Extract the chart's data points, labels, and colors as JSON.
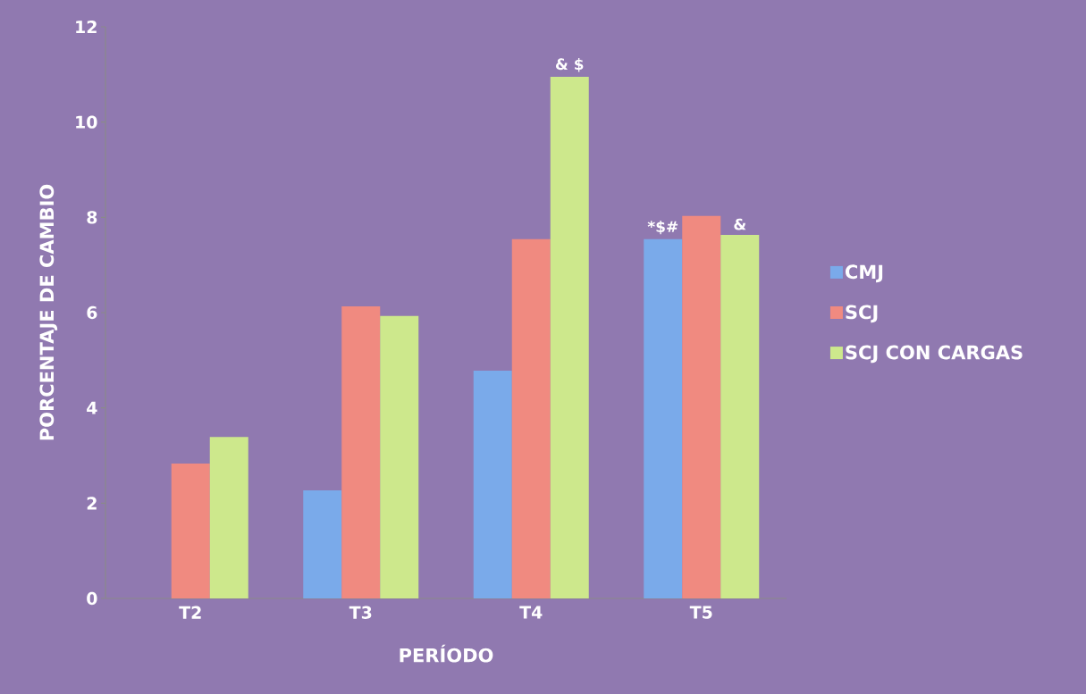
{
  "chart_data": {
    "type": "bar",
    "xlabel": "PERÍODO",
    "ylabel": "PORCENTAJE DE CAMBIO",
    "categories": [
      "T2",
      "T3",
      "T4",
      "T5"
    ],
    "series": [
      {
        "name": "CMJ",
        "color": "#7aaaea",
        "values": [
          null,
          2.27,
          4.78,
          7.54
        ]
      },
      {
        "name": "SCJ",
        "color": "#f08a80",
        "values": [
          2.83,
          6.13,
          7.54,
          8.03
        ]
      },
      {
        "name": "SCJ CON CARGAS",
        "color": "#cde88c",
        "values": [
          3.39,
          5.93,
          10.95,
          7.63
        ]
      }
    ],
    "ylim": [
      0,
      12
    ],
    "yticks": [
      0,
      2,
      4,
      6,
      8,
      10,
      12
    ],
    "legend": "right",
    "grid": false,
    "annotations": [
      "&  $",
      "*$#",
      "&"
    ]
  }
}
